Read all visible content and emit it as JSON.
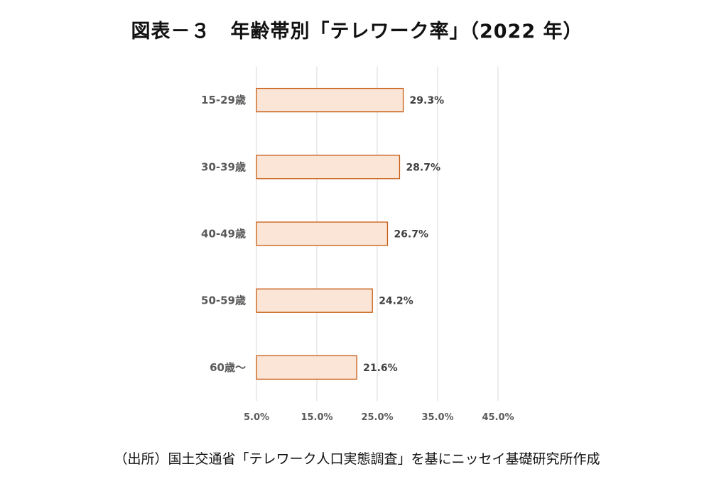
{
  "colors": {
    "bar_fill": "#fbe5d6",
    "bar_stroke": "#c55a11"
  },
  "chart_data": {
    "type": "bar",
    "orientation": "horizontal",
    "title": "図表－３　年齢帯別「テレワーク率」（2022 年）",
    "source": "（出所）国土交通省「テレワーク人口実態調査」を基にニッセイ基礎研究所作成",
    "categories": [
      "15-29歳",
      "30-39歳",
      "40-49歳",
      "50-59歳",
      "60歳～"
    ],
    "values": [
      29.3,
      28.7,
      26.7,
      24.2,
      21.6
    ],
    "data_labels": [
      "29.3%",
      "28.7%",
      "26.7%",
      "24.2%",
      "21.6%"
    ],
    "xlim": [
      5,
      45
    ],
    "x_ticks": [
      5,
      15,
      25,
      35,
      45
    ],
    "x_tick_labels": [
      "5.0%",
      "15.0%",
      "25.0%",
      "35.0%",
      "45.0%"
    ],
    "grid": true,
    "legend": "none"
  }
}
